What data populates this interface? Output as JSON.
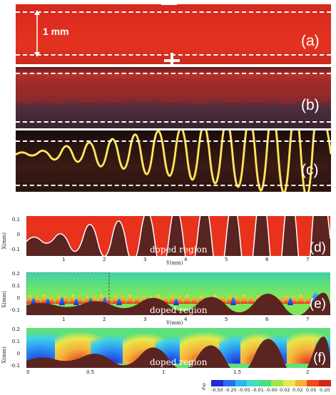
{
  "top_panels": {
    "a": {
      "label": "(a)",
      "scale_label": "1 mm"
    },
    "b": {
      "label": "(b)"
    },
    "c": {
      "label": "(c)"
    },
    "electrode_minus": "—",
    "electrode_plus": "+"
  },
  "sim_panels": {
    "d": {
      "label": "(d)",
      "region": "doped region",
      "y_ticks": [
        "0.1",
        "0",
        "-0.1"
      ],
      "x_ticks": [
        "1",
        "2",
        "3",
        "4",
        "5",
        "6",
        "7"
      ],
      "xlabel": "Y(mm)",
      "ylabel": "X(mm)"
    },
    "e": {
      "label": "(e)",
      "region": "doped region",
      "y_ticks": [
        "0.2",
        "0.1",
        "0",
        "-0.1"
      ],
      "x_ticks": [
        "1",
        "2",
        "3",
        "4",
        "5",
        "6",
        "7"
      ],
      "xlabel": "Y(mm)",
      "ylabel": "X(mm)"
    },
    "f": {
      "label": "(f)",
      "region": "doped region",
      "y_ticks": [
        "0.2",
        "0.1",
        "0",
        "-0.1"
      ],
      "x_ticks": [
        "0",
        "0.5",
        "1",
        "1.5",
        "2"
      ],
      "xlabel": "Y(mm)",
      "ylabel": "X(mm)"
    }
  },
  "colorbar": {
    "title": "rho",
    "ticks": [
      "-0.50",
      "-0.25",
      "-0.05",
      "-0.01",
      "-0.00",
      "0.02",
      "0.02",
      "0.05",
      "0.20"
    ],
    "colors": [
      "#1f2bd6",
      "#2a6cf2",
      "#2fb5f2",
      "#3ee0c0",
      "#49e07a",
      "#9fe64a",
      "#e8e84a",
      "#f5b03a",
      "#f04a1a",
      "#d4241a"
    ]
  }
}
